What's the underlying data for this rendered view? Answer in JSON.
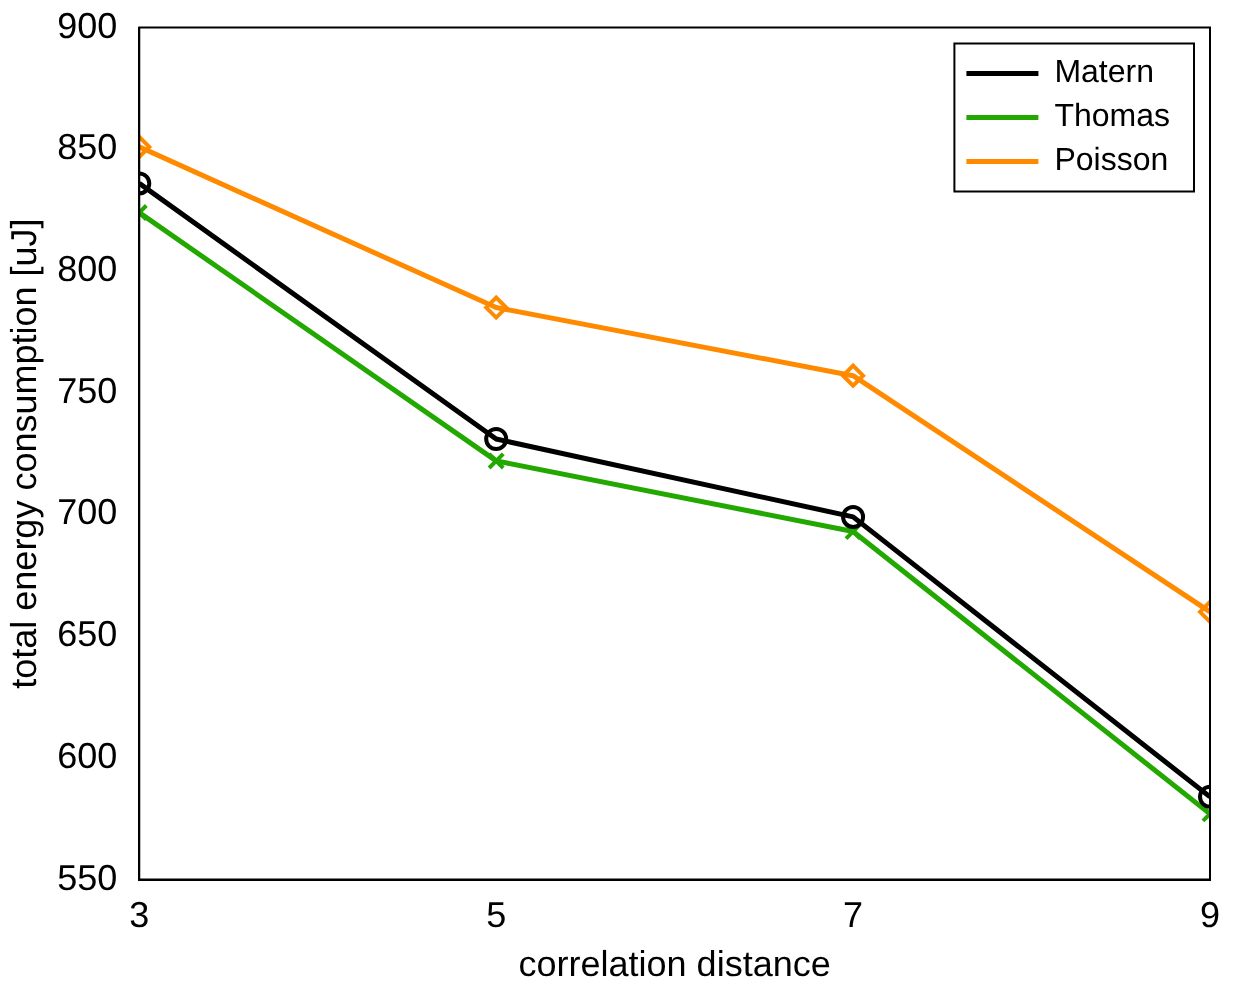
{
  "chart_data": {
    "type": "line",
    "xlabel": "correlation distance",
    "ylabel": "total energy consumption [uJ]",
    "x": [
      3,
      5,
      7,
      9
    ],
    "xlim": [
      3,
      9
    ],
    "xticks": [
      3,
      5,
      7,
      9
    ],
    "ylim": [
      550,
      900
    ],
    "yticks": [
      550,
      600,
      650,
      700,
      750,
      800,
      850,
      900
    ],
    "grid": false,
    "legend": "top right",
    "line_style": "solid",
    "series": [
      {
        "name": "Matern",
        "color": "#000000",
        "marker": "circle",
        "values": [
          836,
          731,
          699,
          584
        ]
      },
      {
        "name": "Thomas",
        "color": "#22a800",
        "marker": "cross",
        "values": [
          824,
          722,
          693,
          577
        ]
      },
      {
        "name": "Poisson",
        "color": "#ff8a00",
        "marker": "diamond",
        "values": [
          851,
          785,
          757,
          660
        ]
      }
    ]
  }
}
